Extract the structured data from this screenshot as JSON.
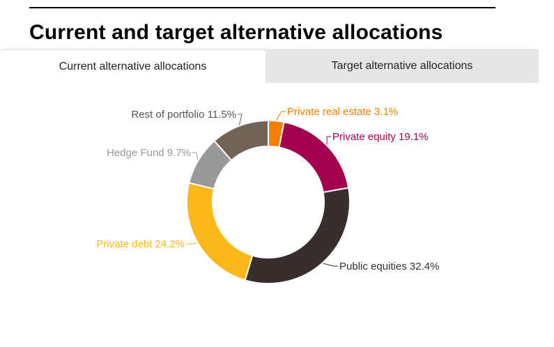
{
  "header": {
    "title": "Current and target alternative allocations"
  },
  "tabs": [
    {
      "label": "Current alternative allocations",
      "active": true
    },
    {
      "label": "Target alternative allocations",
      "active": false
    }
  ],
  "chart_data": {
    "type": "pie",
    "donut": true,
    "slices": [
      {
        "label": "Private real estate 3.1%",
        "value": 3.1,
        "color": "#f57f00"
      },
      {
        "label": "Private equity 19.1%",
        "value": 19.1,
        "color": "#a50050"
      },
      {
        "label": "Public equities 32.4%",
        "value": 32.4,
        "color": "#382e2c"
      },
      {
        "label": "Private debt 24.2%",
        "value": 24.2,
        "color": "#fdb71a"
      },
      {
        "label": "Hedge Fund 9.7%",
        "value": 9.7,
        "color": "#999999"
      },
      {
        "label": "Rest of portfolio 11.5%",
        "value": 11.5,
        "color": "#736357"
      }
    ],
    "label_colors": [
      "#f57f00",
      "#a50050",
      "#333333",
      "#fdb71a",
      "#999999",
      "#555555"
    ]
  }
}
